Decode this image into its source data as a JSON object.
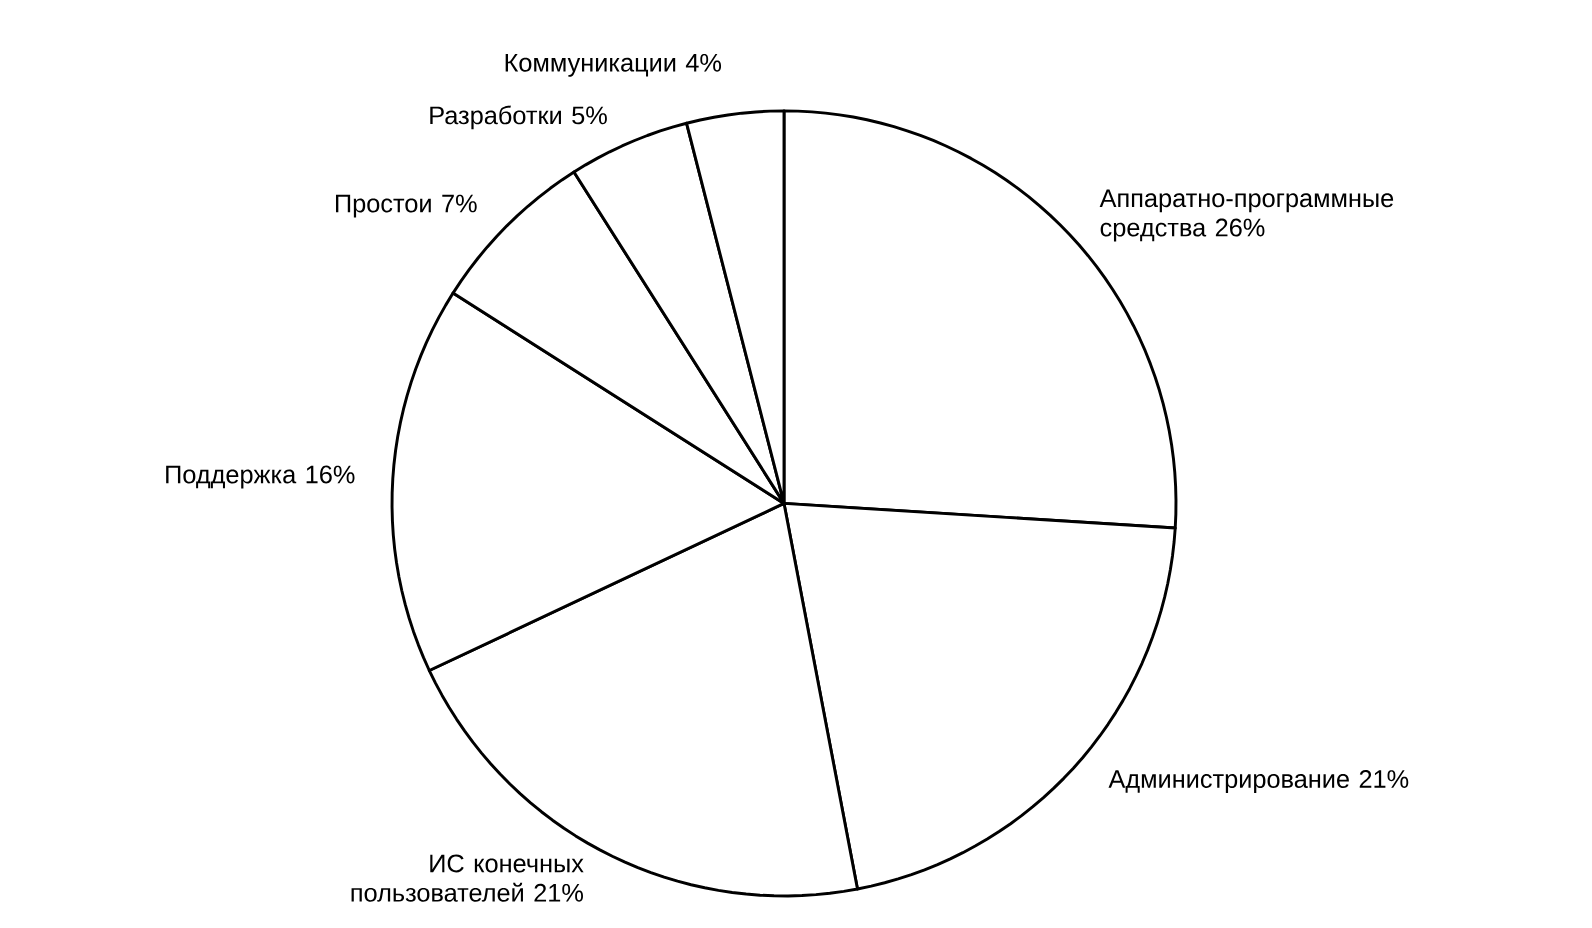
{
  "chart_data": {
    "type": "pie",
    "categories": [
      "Аппаратно-программные средства",
      "Администрирование",
      "ИС конечных пользователей",
      "Поддержка",
      "Простои",
      "Разработки",
      "Коммуникации"
    ],
    "values": [
      26,
      21,
      21,
      16,
      7,
      5,
      4
    ],
    "value_labels": [
      "26%",
      "21%",
      "21%",
      "16%",
      "7%",
      "5%",
      "4%"
    ],
    "colors": [
      "#ffffff",
      "#ffffff",
      "#ffffff",
      "#ffffff",
      "#ffffff",
      "#ffffff",
      "#ffffff"
    ]
  }
}
